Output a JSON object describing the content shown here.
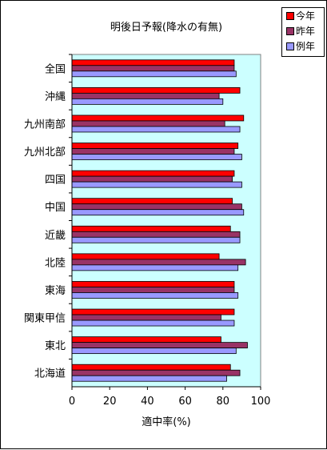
{
  "chart_data": {
    "type": "bar",
    "orientation": "horizontal",
    "title": "明後日予報(降水の有無)",
    "xlabel": "適中率(%)",
    "ylabel": "",
    "xlim": [
      0,
      100
    ],
    "x_ticks": [
      "0",
      "20",
      "40",
      "60",
      "80",
      "100"
    ],
    "categories": [
      "全国",
      "沖縄",
      "九州南部",
      "九州北部",
      "四国",
      "中国",
      "近畿",
      "北陸",
      "東海",
      "関東甲信",
      "東北",
      "北海道"
    ],
    "series": [
      {
        "name": "今年",
        "color": "#ff0000",
        "values": [
          86,
          89,
          91,
          88,
          86,
          85,
          84,
          78,
          86,
          86,
          79,
          84
        ]
      },
      {
        "name": "昨年",
        "color": "#993366",
        "values": [
          86,
          78,
          81,
          86,
          85,
          90,
          89,
          92,
          86,
          79,
          93,
          89
        ]
      },
      {
        "name": "例年",
        "color": "#9999ff",
        "values": [
          87,
          80,
          89,
          90,
          90,
          91,
          89,
          88,
          88,
          86,
          87,
          82
        ]
      }
    ],
    "plot_background": "#ccffff",
    "grid": false,
    "legend_position": "top-right"
  }
}
